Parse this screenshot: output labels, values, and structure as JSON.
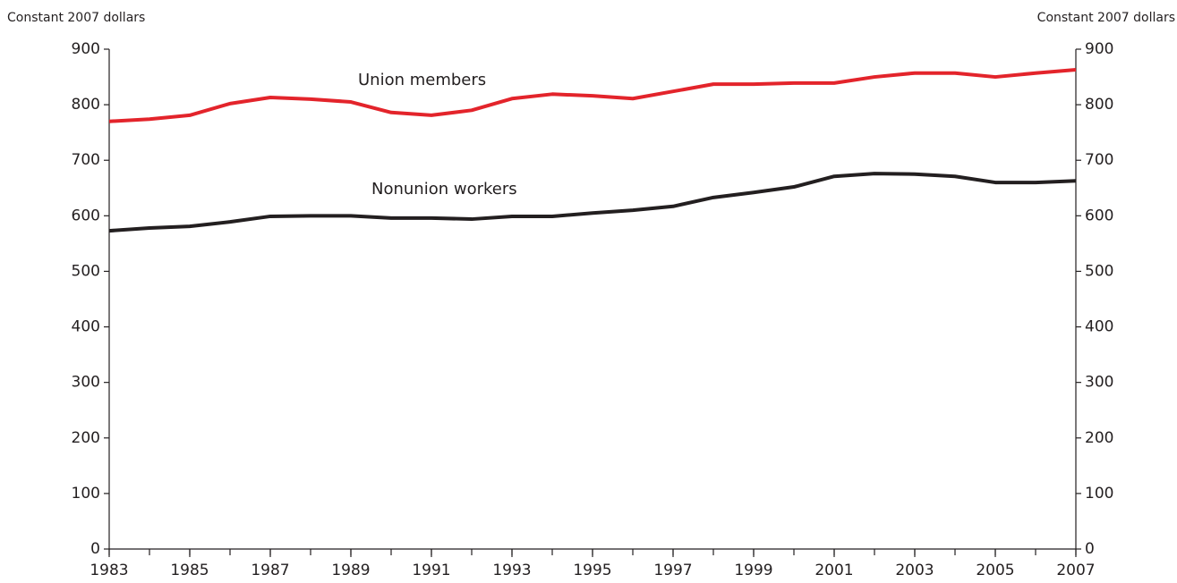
{
  "chart_data": {
    "type": "line",
    "y_label": "Constant 2007 dollars",
    "y2_label": "Constant 2007 dollars",
    "annotations": [
      "Union members",
      "Nonunion workers"
    ],
    "x": [
      1983,
      1984,
      1985,
      1986,
      1987,
      1988,
      1989,
      1990,
      1991,
      1992,
      1993,
      1994,
      1995,
      1996,
      1997,
      1998,
      1999,
      2000,
      2001,
      2002,
      2003,
      2004,
      2005,
      2006,
      2007
    ],
    "xlim": [
      1983,
      2007
    ],
    "xticks": [
      1983,
      1985,
      1987,
      1989,
      1991,
      1993,
      1995,
      1997,
      1999,
      2001,
      2003,
      2005,
      2007
    ],
    "ylim": [
      0,
      900
    ],
    "yticks": [
      0,
      100,
      200,
      300,
      400,
      500,
      600,
      700,
      800,
      900
    ],
    "y2lim": [
      0,
      900
    ],
    "y2ticks": [
      0,
      100,
      200,
      300,
      400,
      500,
      600,
      700,
      800,
      900
    ],
    "series": [
      {
        "name": "Union members",
        "color": "#e3242b",
        "values": [
          770,
          774,
          781,
          802,
          813,
          810,
          805,
          786,
          781,
          790,
          811,
          819,
          816,
          811,
          824,
          837,
          837,
          839,
          839,
          850,
          857,
          857,
          850,
          857,
          863
        ]
      },
      {
        "name": "Nonunion workers",
        "color": "#231f20",
        "values": [
          573,
          578,
          581,
          589,
          599,
          600,
          600,
          596,
          596,
          594,
          599,
          599,
          605,
          610,
          617,
          633,
          642,
          652,
          671,
          676,
          675,
          671,
          660,
          660,
          663
        ]
      }
    ]
  }
}
